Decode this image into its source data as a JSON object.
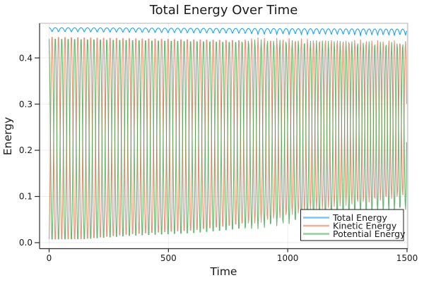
{
  "title": "Total Energy Over Time",
  "chart_data": {
    "type": "line",
    "title": "Total Energy Over Time",
    "xlabel": "Time",
    "ylabel": "Energy",
    "xlim": [
      -40,
      1503
    ],
    "ylim": [
      -0.013,
      0.475
    ],
    "xticks": [
      0,
      500,
      1000,
      1500
    ],
    "yticks": [
      0.0,
      0.1,
      0.2,
      0.3,
      0.4
    ],
    "grid": true,
    "legend_position": "bottom-right",
    "background": "#ffffff",
    "frame_color": "#b5b5b5",
    "axis_color": "#2b2b2b",
    "grid_color": "rgba(0,0,0,0.07)",
    "series": [
      {
        "name": "Total Energy",
        "color": "#009AFA",
        "opacity": 0.9,
        "description": "Nearly conserved total energy: scalloped arcs with rounded tops near 0.465 and sharp dips to ~0.452 (deepening to ~0.447 by t=1500), one dip per oscillation cycle."
      },
      {
        "name": "Kinetic Energy",
        "color": "#E36E47",
        "opacity": 0.75,
        "description": "Fast oscillation (period ~27 time units, drifting to ~23) between ~0 and ~0.452 early; lower envelope rises to ~0.10 and peaks decline to ~0.44 by t=1500, with beat/moire banding after t~800."
      },
      {
        "name": "Potential Energy",
        "color": "#3DA44E",
        "opacity": 0.8,
        "description": "Anti-phase mirror of kinetic energy: oscillates between ~0 and ~0.45, peaks slightly below kinetic peaks; same envelope narrowing and banding after t~800."
      }
    ],
    "model": {
      "t_start": 0,
      "t_end": 1500,
      "sample_dt": 2.25,
      "spike_period_start": 27.0,
      "spike_period_end": 23.0,
      "period_drift_start_t": 780,
      "phase_offset": 0.131,
      "total_top": [
        [
          0,
          0.4655
        ],
        [
          1500,
          0.4625
        ]
      ],
      "total_dip": [
        [
          0,
          0.0115
        ],
        [
          1500,
          0.017
        ]
      ],
      "total_cusp_exponent": 0.6,
      "kinetic_max": [
        [
          0,
          0.4525
        ],
        [
          1500,
          0.4375
        ]
      ],
      "kinetic_min": [
        [
          0,
          0.0
        ],
        [
          150,
          0.001
        ],
        [
          350,
          0.012
        ],
        [
          600,
          0.02
        ],
        [
          750,
          0.03
        ],
        [
          900,
          0.045
        ],
        [
          1100,
          0.07
        ],
        [
          1500,
          0.1
        ]
      ],
      "potential_peak_offset": -0.004,
      "potential_min_factor": 0.7
    }
  },
  "legend": {
    "items": [
      "Total Energy",
      "Kinetic Energy",
      "Potential Energy"
    ]
  }
}
